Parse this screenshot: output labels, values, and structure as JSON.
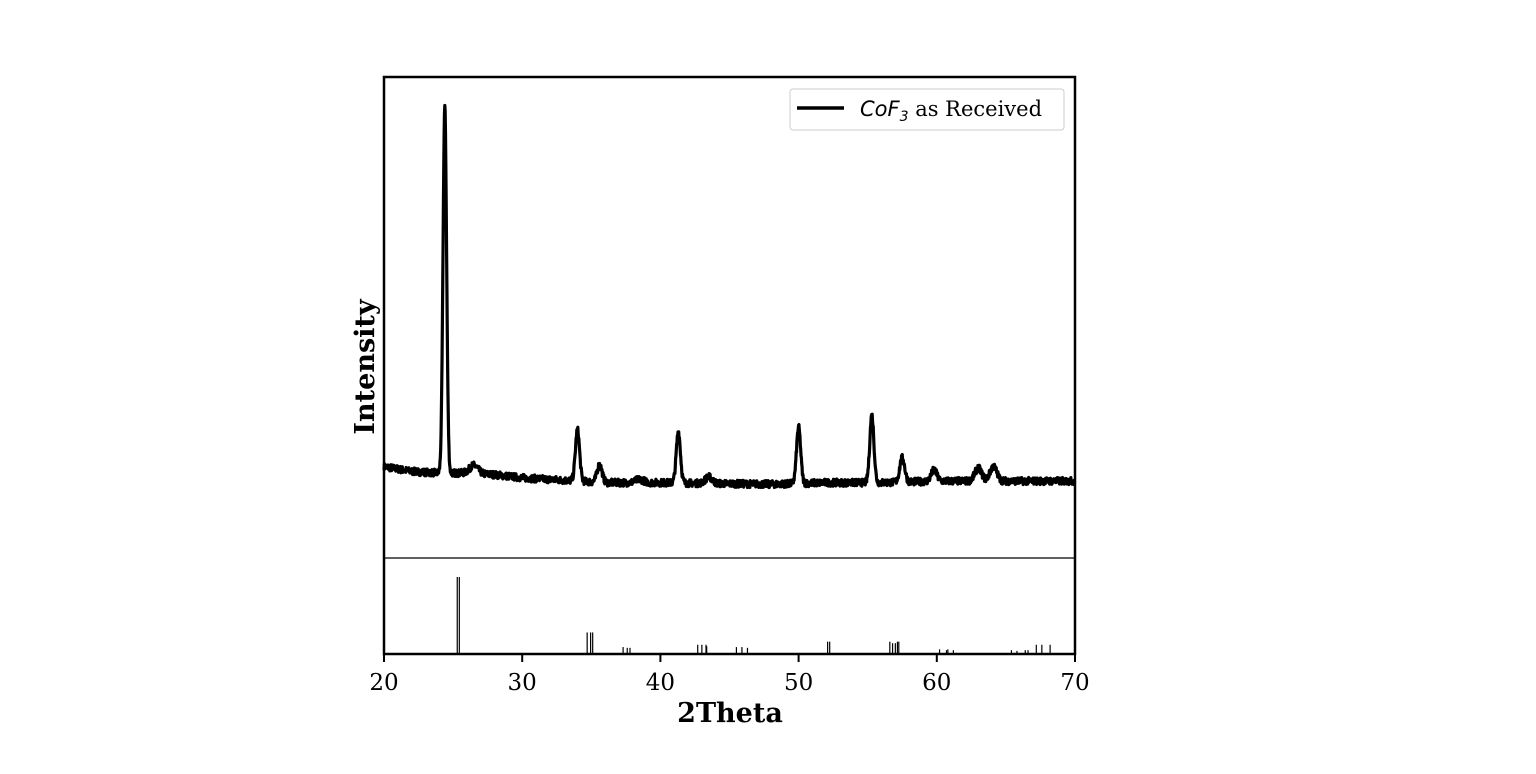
{
  "chart_data": {
    "type": "line",
    "xlabel": "2Theta",
    "ylabel": "Intensity",
    "xlim": [
      20,
      70
    ],
    "xticks": [
      20,
      30,
      40,
      50,
      60,
      70
    ],
    "xtick_labels": [
      "20",
      "30",
      "40",
      "50",
      "60",
      "70"
    ],
    "legend": {
      "placement": "top-right",
      "entries": [
        {
          "italic": "CoF",
          "subscript": "3",
          "text": " as Received"
        }
      ]
    },
    "series": [
      {
        "name": "CoF3 as Received",
        "color": "#000000",
        "baseline": [
          [
            20,
            0.57
          ],
          [
            22,
            0.54
          ],
          [
            24,
            0.53
          ],
          [
            26,
            0.53
          ],
          [
            28,
            0.52
          ],
          [
            30,
            0.5
          ],
          [
            32,
            0.49
          ],
          [
            34,
            0.48
          ],
          [
            36,
            0.47
          ],
          [
            40,
            0.47
          ],
          [
            44,
            0.465
          ],
          [
            48,
            0.46
          ],
          [
            52,
            0.47
          ],
          [
            56,
            0.47
          ],
          [
            60,
            0.48
          ],
          [
            64,
            0.48
          ],
          [
            68,
            0.48
          ],
          [
            70,
            0.48
          ]
        ],
        "peaks": [
          {
            "x": 24.4,
            "height": 2.28,
            "width": 0.13
          },
          {
            "x": 26.5,
            "height": 0.05,
            "width": 0.3
          },
          {
            "x": 34.0,
            "height": 0.32,
            "width": 0.15
          },
          {
            "x": 35.6,
            "height": 0.11,
            "width": 0.18
          },
          {
            "x": 38.5,
            "height": 0.02,
            "width": 0.3
          },
          {
            "x": 41.3,
            "height": 0.32,
            "width": 0.15
          },
          {
            "x": 43.5,
            "height": 0.04,
            "width": 0.25
          },
          {
            "x": 50.0,
            "height": 0.35,
            "width": 0.15
          },
          {
            "x": 55.3,
            "height": 0.42,
            "width": 0.15
          },
          {
            "x": 57.5,
            "height": 0.15,
            "width": 0.18
          },
          {
            "x": 59.8,
            "height": 0.07,
            "width": 0.2
          },
          {
            "x": 63.0,
            "height": 0.08,
            "width": 0.25
          },
          {
            "x": 64.1,
            "height": 0.09,
            "width": 0.25
          }
        ]
      }
    ],
    "reference_lines": [
      {
        "x": 25.3,
        "value": 1.0
      },
      {
        "x": 25.45,
        "value": 1.0
      },
      {
        "x": 34.7,
        "value": 0.28
      },
      {
        "x": 34.95,
        "value": 0.28
      },
      {
        "x": 35.1,
        "value": 0.28
      },
      {
        "x": 37.3,
        "value": 0.09
      },
      {
        "x": 37.6,
        "value": 0.08
      },
      {
        "x": 37.8,
        "value": 0.08
      },
      {
        "x": 42.7,
        "value": 0.12
      },
      {
        "x": 43.0,
        "value": 0.12
      },
      {
        "x": 43.3,
        "value": 0.12
      },
      {
        "x": 43.35,
        "value": 0.1
      },
      {
        "x": 45.5,
        "value": 0.09
      },
      {
        "x": 45.9,
        "value": 0.09
      },
      {
        "x": 46.3,
        "value": 0.08
      },
      {
        "x": 52.1,
        "value": 0.16
      },
      {
        "x": 52.25,
        "value": 0.16
      },
      {
        "x": 56.6,
        "value": 0.16
      },
      {
        "x": 56.8,
        "value": 0.14
      },
      {
        "x": 57.0,
        "value": 0.14
      },
      {
        "x": 57.15,
        "value": 0.16
      },
      {
        "x": 57.25,
        "value": 0.16
      },
      {
        "x": 60.2,
        "value": 0.06
      },
      {
        "x": 60.7,
        "value": 0.05
      },
      {
        "x": 60.8,
        "value": 0.06
      },
      {
        "x": 61.2,
        "value": 0.05
      },
      {
        "x": 65.4,
        "value": 0.05
      },
      {
        "x": 65.8,
        "value": 0.04
      },
      {
        "x": 66.4,
        "value": 0.05
      },
      {
        "x": 66.6,
        "value": 0.05
      },
      {
        "x": 67.2,
        "value": 0.12
      },
      {
        "x": 67.6,
        "value": 0.12
      },
      {
        "x": 68.2,
        "value": 0.12
      }
    ]
  }
}
